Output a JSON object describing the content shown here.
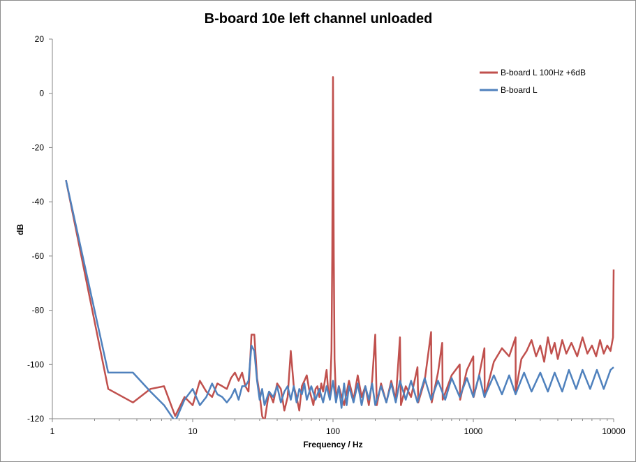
{
  "chart_data": {
    "type": "line",
    "title": "B-board 10e left channel unloaded",
    "xlabel": "Frequency / Hz",
    "ylabel": "dB",
    "x_scale": "log",
    "xlim": [
      1,
      10000
    ],
    "ylim": [
      -120,
      20
    ],
    "x_ticks": [
      1,
      10,
      100,
      1000,
      10000
    ],
    "x_tick_labels": [
      "1",
      "10",
      "100",
      "1000",
      "10000"
    ],
    "y_ticks": [
      20,
      0,
      -20,
      -40,
      -60,
      -80,
      -100,
      -120
    ],
    "y_tick_labels": [
      "20",
      "0",
      "-20",
      "-40",
      "-60",
      "-80",
      "-100",
      "-120"
    ],
    "grid": false,
    "legend_position": "top-right",
    "series": [
      {
        "name": "B-board L 100Hz +6dB",
        "color": "#C0504D",
        "points": [
          [
            1.25,
            -32
          ],
          [
            2.5,
            -109
          ],
          [
            3.75,
            -114
          ],
          [
            5,
            -109
          ],
          [
            6.25,
            -108
          ],
          [
            7.5,
            -119
          ],
          [
            8.75,
            -112
          ],
          [
            10,
            -115
          ],
          [
            11.25,
            -106
          ],
          [
            12.5,
            -110
          ],
          [
            13.75,
            -112
          ],
          [
            15,
            -107
          ],
          [
            16.25,
            -108
          ],
          [
            17.5,
            -109
          ],
          [
            18.75,
            -105
          ],
          [
            20,
            -103
          ],
          [
            21.25,
            -106
          ],
          [
            22.5,
            -103
          ],
          [
            23.75,
            -108
          ],
          [
            25,
            -110
          ],
          [
            26.25,
            -89
          ],
          [
            27.5,
            -89
          ],
          [
            28.75,
            -105
          ],
          [
            30,
            -111
          ],
          [
            31.25,
            -119
          ],
          [
            32.5,
            -121
          ],
          [
            35,
            -110
          ],
          [
            37.5,
            -114
          ],
          [
            40,
            -107
          ],
          [
            42.5,
            -109
          ],
          [
            45,
            -117
          ],
          [
            47.5,
            -112
          ],
          [
            50,
            -95
          ],
          [
            52.5,
            -108
          ],
          [
            55,
            -112
          ],
          [
            57.5,
            -117
          ],
          [
            60,
            -108
          ],
          [
            62.5,
            -106
          ],
          [
            65,
            -104
          ],
          [
            67.5,
            -109
          ],
          [
            70,
            -112
          ],
          [
            72.5,
            -115
          ],
          [
            75,
            -109
          ],
          [
            77.5,
            -108
          ],
          [
            80,
            -112
          ],
          [
            82.5,
            -107
          ],
          [
            85,
            -110
          ],
          [
            87.5,
            -106
          ],
          [
            90,
            -102
          ],
          [
            92.5,
            -110
          ],
          [
            95,
            -112
          ],
          [
            97.5,
            -95
          ],
          [
            98.75,
            -60
          ],
          [
            100,
            6
          ],
          [
            101.25,
            -60
          ],
          [
            102.5,
            -98
          ],
          [
            105,
            -113
          ],
          [
            110,
            -108
          ],
          [
            120,
            -115
          ],
          [
            130,
            -106
          ],
          [
            140,
            -113
          ],
          [
            150,
            -104
          ],
          [
            160,
            -112
          ],
          [
            170,
            -108
          ],
          [
            180,
            -115
          ],
          [
            190,
            -106
          ],
          [
            200,
            -89
          ],
          [
            205,
            -115
          ],
          [
            220,
            -107
          ],
          [
            240,
            -114
          ],
          [
            260,
            -106
          ],
          [
            280,
            -113
          ],
          [
            300,
            -90
          ],
          [
            305,
            -115
          ],
          [
            330,
            -108
          ],
          [
            360,
            -112
          ],
          [
            400,
            -101
          ],
          [
            405,
            -114
          ],
          [
            450,
            -106
          ],
          [
            500,
            -88
          ],
          [
            505,
            -114
          ],
          [
            560,
            -103
          ],
          [
            600,
            -92
          ],
          [
            605,
            -113
          ],
          [
            700,
            -104
          ],
          [
            800,
            -100
          ],
          [
            805,
            -113
          ],
          [
            900,
            -102
          ],
          [
            1000,
            -97
          ],
          [
            1005,
            -112
          ],
          [
            1100,
            -104
          ],
          [
            1200,
            -94
          ],
          [
            1205,
            -112
          ],
          [
            1400,
            -99
          ],
          [
            1600,
            -94
          ],
          [
            1800,
            -97
          ],
          [
            2000,
            -90
          ],
          [
            2005,
            -110
          ],
          [
            2200,
            -98
          ],
          [
            2400,
            -95
          ],
          [
            2600,
            -91
          ],
          [
            2800,
            -97
          ],
          [
            3000,
            -93
          ],
          [
            3200,
            -99
          ],
          [
            3400,
            -90
          ],
          [
            3600,
            -96
          ],
          [
            3800,
            -92
          ],
          [
            4000,
            -98
          ],
          [
            4300,
            -91
          ],
          [
            4600,
            -96
          ],
          [
            5000,
            -92
          ],
          [
            5500,
            -97
          ],
          [
            6000,
            -90
          ],
          [
            6500,
            -96
          ],
          [
            7000,
            -93
          ],
          [
            7500,
            -97
          ],
          [
            8000,
            -91
          ],
          [
            8500,
            -96
          ],
          [
            9000,
            -93
          ],
          [
            9500,
            -95
          ],
          [
            9900,
            -90
          ],
          [
            10000,
            -65
          ]
        ]
      },
      {
        "name": "B-board L",
        "color": "#4F81BD",
        "points": [
          [
            1.25,
            -32
          ],
          [
            2.5,
            -103
          ],
          [
            3.75,
            -103
          ],
          [
            5,
            -110
          ],
          [
            6.25,
            -115
          ],
          [
            7.5,
            -121
          ],
          [
            8.75,
            -113
          ],
          [
            10,
            -109
          ],
          [
            11.25,
            -115
          ],
          [
            12.5,
            -112
          ],
          [
            13.75,
            -107
          ],
          [
            15,
            -111
          ],
          [
            16.25,
            -112
          ],
          [
            17.5,
            -114
          ],
          [
            18.75,
            -112
          ],
          [
            20,
            -109
          ],
          [
            21.25,
            -113
          ],
          [
            22.5,
            -108
          ],
          [
            23.75,
            -108
          ],
          [
            25,
            -106
          ],
          [
            26.25,
            -93
          ],
          [
            27.5,
            -95
          ],
          [
            28.75,
            -106
          ],
          [
            30,
            -113
          ],
          [
            31.25,
            -109
          ],
          [
            32.5,
            -115
          ],
          [
            35,
            -110
          ],
          [
            37.5,
            -112
          ],
          [
            40,
            -108
          ],
          [
            42.5,
            -114
          ],
          [
            45,
            -110
          ],
          [
            47.5,
            -108
          ],
          [
            50,
            -113
          ],
          [
            52.5,
            -108
          ],
          [
            55,
            -114
          ],
          [
            57.5,
            -109
          ],
          [
            60,
            -111
          ],
          [
            62.5,
            -107
          ],
          [
            65,
            -113
          ],
          [
            70,
            -108
          ],
          [
            75,
            -113
          ],
          [
            80,
            -109
          ],
          [
            85,
            -114
          ],
          [
            90,
            -108
          ],
          [
            95,
            -113
          ],
          [
            100,
            -106
          ],
          [
            105,
            -114
          ],
          [
            110,
            -108
          ],
          [
            115,
            -116
          ],
          [
            120,
            -107
          ],
          [
            125,
            -115
          ],
          [
            130,
            -108
          ],
          [
            140,
            -114
          ],
          [
            150,
            -107
          ],
          [
            160,
            -115
          ],
          [
            170,
            -108
          ],
          [
            180,
            -113
          ],
          [
            190,
            -107
          ],
          [
            200,
            -115
          ],
          [
            220,
            -108
          ],
          [
            240,
            -114
          ],
          [
            260,
            -107
          ],
          [
            280,
            -114
          ],
          [
            300,
            -106
          ],
          [
            330,
            -113
          ],
          [
            360,
            -106
          ],
          [
            400,
            -114
          ],
          [
            450,
            -105
          ],
          [
            500,
            -113
          ],
          [
            560,
            -106
          ],
          [
            630,
            -113
          ],
          [
            700,
            -105
          ],
          [
            800,
            -112
          ],
          [
            900,
            -105
          ],
          [
            1000,
            -112
          ],
          [
            1100,
            -104
          ],
          [
            1200,
            -112
          ],
          [
            1400,
            -104
          ],
          [
            1600,
            -111
          ],
          [
            1800,
            -104
          ],
          [
            2000,
            -111
          ],
          [
            2300,
            -103
          ],
          [
            2600,
            -110
          ],
          [
            3000,
            -103
          ],
          [
            3400,
            -110
          ],
          [
            3800,
            -103
          ],
          [
            4300,
            -110
          ],
          [
            4800,
            -102
          ],
          [
            5400,
            -109
          ],
          [
            6000,
            -102
          ],
          [
            6800,
            -109
          ],
          [
            7600,
            -102
          ],
          [
            8500,
            -109
          ],
          [
            9500,
            -102
          ],
          [
            10000,
            -101
          ]
        ]
      }
    ]
  }
}
